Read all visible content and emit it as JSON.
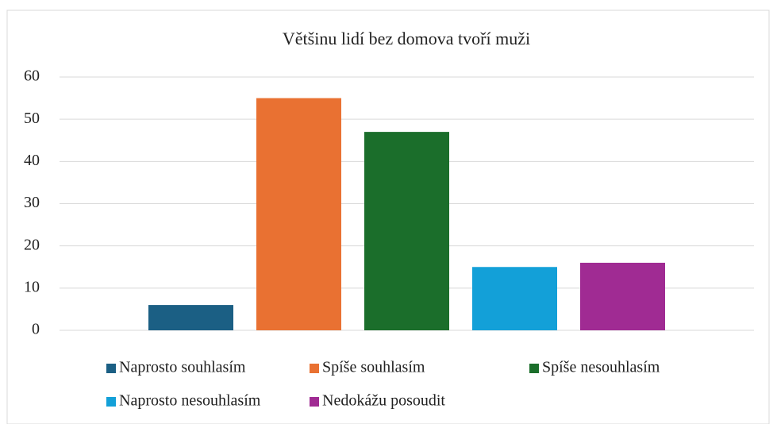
{
  "chart_data": {
    "type": "bar",
    "title": "Většinu lidí bez domova tvoří muži",
    "series": [
      {
        "name": "Naprosto souhlasím",
        "color": "#1b5f84",
        "values": [
          6
        ]
      },
      {
        "name": "Spíše souhlasím",
        "color": "#e97132",
        "values": [
          55
        ]
      },
      {
        "name": "Spíše nesouhlasím",
        "color": "#1b6e2b",
        "values": [
          47
        ]
      },
      {
        "name": "Naprosto nesouhlasím",
        "color": "#13a0d8",
        "values": [
          15
        ]
      },
      {
        "name": "Nedokážu posoudit",
        "color": "#a02b93",
        "values": [
          16
        ]
      }
    ],
    "ylim": [
      0,
      60
    ],
    "yticks": [
      0,
      10,
      20,
      30,
      40,
      50,
      60
    ],
    "grid": true,
    "legend": "bottom"
  }
}
